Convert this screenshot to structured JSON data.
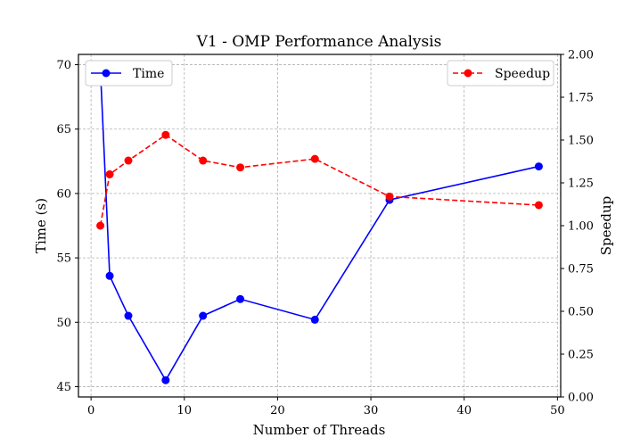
{
  "chart_data": {
    "type": "line",
    "title": "V1 - OMP Performance Analysis",
    "xlabel": "Number of Threads",
    "ylabel_left": "Time (s)",
    "ylabel_right": "Speedup",
    "xlim": [
      -1.35,
      50.35
    ],
    "ylim_left": [
      44.2,
      70.8
    ],
    "ylim_right": [
      0.0,
      2.0
    ],
    "xticks": [
      0,
      10,
      20,
      30,
      40,
      50
    ],
    "yticks_left": [
      45,
      50,
      55,
      60,
      65,
      70
    ],
    "yticks_right": [
      0.0,
      0.25,
      0.5,
      0.75,
      1.0,
      1.25,
      1.5,
      1.75,
      2.0
    ],
    "ytick_right_labels": [
      "0.00",
      "0.25",
      "0.50",
      "0.75",
      "1.00",
      "1.25",
      "1.50",
      "1.75",
      "2.00"
    ],
    "grid": true,
    "x": [
      1,
      2,
      4,
      8,
      12,
      16,
      24,
      32,
      48
    ],
    "series": [
      {
        "name": "Time",
        "axis": "left",
        "color": "#0000ff",
        "linestyle": "solid",
        "marker": "circle",
        "legend_position": "top-left",
        "values": [
          69.7,
          53.6,
          50.5,
          45.5,
          50.5,
          51.8,
          50.2,
          59.5,
          62.1
        ]
      },
      {
        "name": "Speedup",
        "axis": "right",
        "color": "#ff0000",
        "linestyle": "dashed",
        "marker": "circle",
        "legend_position": "top-right",
        "values": [
          1.0,
          1.3,
          1.38,
          1.53,
          1.38,
          1.34,
          1.39,
          1.17,
          1.12
        ]
      }
    ]
  }
}
